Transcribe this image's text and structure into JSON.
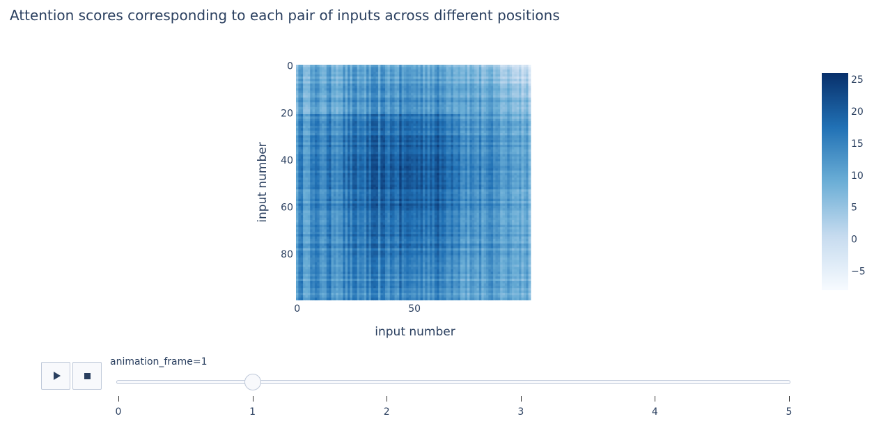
{
  "chart_data": {
    "type": "heatmap",
    "title": "Attention scores corresponding to each pair of inputs across different positions",
    "xlabel": "input number",
    "ylabel": "input number",
    "x_range": [
      0,
      99
    ],
    "y_range": [
      0,
      99
    ],
    "x_ticks": [
      "0",
      "50"
    ],
    "y_ticks": [
      "0",
      "20",
      "40",
      "60",
      "80"
    ],
    "x_tick_values": [
      0,
      50
    ],
    "y_tick_values": [
      0,
      20,
      40,
      60,
      80
    ],
    "colorscale": [
      "#f7fbff",
      "#c6dbef",
      "#6baed6",
      "#2171b5",
      "#08306b"
    ],
    "colorbar": {
      "min": -8,
      "max": 26,
      "ticks": [
        25,
        20,
        15,
        10,
        5,
        0,
        -5
      ],
      "tick_labels": [
        "25",
        "20",
        "15",
        "10",
        "5",
        "0",
        "−5"
      ]
    },
    "value_summary": {
      "approx_min": -8,
      "approx_max": 26,
      "peak_region": "around input 40-60 (both axes)",
      "low_region": "top-right corner (x 80-99, y 0-20)"
    }
  },
  "animation": {
    "label": "animation_frame=1",
    "current_frame": 1,
    "frames": [
      "0",
      "1",
      "2",
      "3",
      "4",
      "5"
    ],
    "play_icon": "play-icon",
    "stop_icon": "stop-icon"
  }
}
